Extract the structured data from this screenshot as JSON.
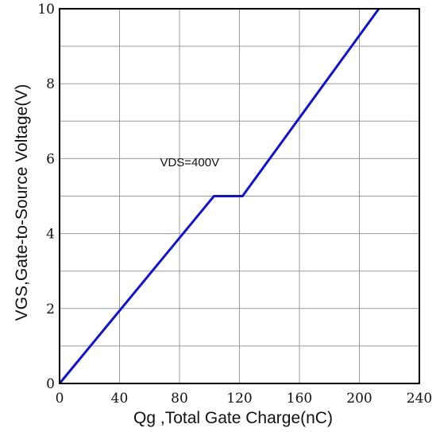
{
  "chart_data": {
    "type": "line",
    "xlabel": "Qg ,Total Gate Charge(nC)",
    "ylabel": "VGS,Gate-to-Source Voltage(V)",
    "xlim": [
      0,
      240
    ],
    "ylim": [
      0,
      10
    ],
    "x_ticks": [
      "0",
      "40",
      "80",
      "120",
      "160",
      "200",
      "240"
    ],
    "y_ticks": [
      "0",
      "2",
      "4",
      "6",
      "8",
      "10"
    ],
    "grid": true,
    "grid_minor_y": true,
    "series": [
      {
        "color": "#1010dd",
        "x": [
          0,
          103,
          122,
          213
        ],
        "y": [
          0,
          5.0,
          5.0,
          10.0
        ]
      }
    ],
    "annotations": [
      {
        "text": "VDS=400V",
        "x": 67,
        "y": 5.8
      }
    ]
  }
}
